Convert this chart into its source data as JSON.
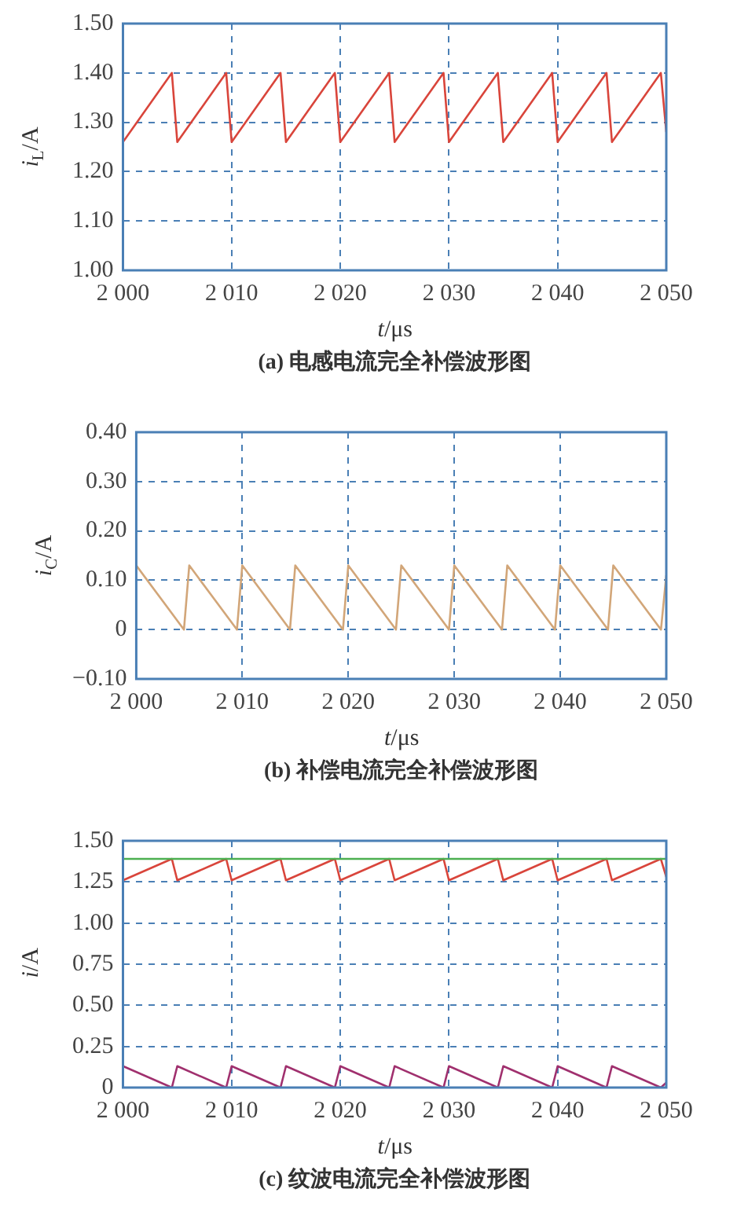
{
  "chart_data": [
    {
      "type": "line",
      "title": "(a) 电感电流完全补偿波形图",
      "xlabel": "t/μs",
      "ylabel": "i$_{L}$/A",
      "grid": true,
      "legend": false,
      "marker": "none",
      "line_style": "solid",
      "xlim": [
        2000,
        2050
      ],
      "xticks": [
        {
          "value": 2000,
          "label": "2 000"
        },
        {
          "value": 2010,
          "label": "2 010"
        },
        {
          "value": 2020,
          "label": "2 020"
        },
        {
          "value": 2030,
          "label": "2 030"
        },
        {
          "value": 2040,
          "label": "2 040"
        },
        {
          "value": 2050,
          "label": "2 050"
        }
      ],
      "ylim": [
        1.0,
        1.5
      ],
      "yticks": [
        {
          "value": 1.0,
          "label": "1.00"
        },
        {
          "value": 1.1,
          "label": "1.10"
        },
        {
          "value": 1.2,
          "label": "1.20"
        },
        {
          "value": 1.3,
          "label": "1.30"
        },
        {
          "value": 1.4,
          "label": "1.40"
        },
        {
          "value": 1.5,
          "label": "1.50"
        }
      ],
      "series": [
        {
          "color": "#d9453b",
          "x": [
            2000,
            2004.5,
            2005,
            2009.5,
            2010,
            2014.5,
            2015,
            2019.5,
            2020,
            2024.5,
            2025,
            2029.5,
            2030,
            2034.5,
            2035,
            2039.5,
            2040,
            2044.5,
            2045,
            2049.5,
            2050
          ],
          "values": [
            1.26,
            1.4,
            1.26,
            1.4,
            1.26,
            1.4,
            1.26,
            1.4,
            1.26,
            1.4,
            1.26,
            1.4,
            1.26,
            1.4,
            1.26,
            1.4,
            1.26,
            1.4,
            1.26,
            1.4,
            1.28
          ]
        }
      ]
    },
    {
      "type": "line",
      "title": "(b) 补偿电流完全补偿波形图",
      "xlabel": "t/μs",
      "ylabel": "i$_{C}$/A",
      "grid": true,
      "legend": false,
      "marker": "none",
      "line_style": "solid",
      "xlim": [
        2000,
        2050
      ],
      "xticks": [
        {
          "value": 2000,
          "label": "2 000"
        },
        {
          "value": 2010,
          "label": "2 010"
        },
        {
          "value": 2020,
          "label": "2 020"
        },
        {
          "value": 2030,
          "label": "2 030"
        },
        {
          "value": 2040,
          "label": "2 040"
        },
        {
          "value": 2050,
          "label": "2 050"
        }
      ],
      "ylim": [
        -0.1,
        0.4
      ],
      "yticks": [
        {
          "value": -0.1,
          "label": "−0.10"
        },
        0,
        {
          "value": 0.1,
          "label": "0.10"
        },
        {
          "value": 0.2,
          "label": "0.20"
        },
        {
          "value": 0.3,
          "label": "0.30"
        },
        {
          "value": 0.4,
          "label": "0.40"
        }
      ],
      "series": [
        {
          "color": "#d2a679",
          "x": [
            2000,
            2004.5,
            2005,
            2009.5,
            2010,
            2014.5,
            2015,
            2019.5,
            2020,
            2024.5,
            2025,
            2029.5,
            2030,
            2034.5,
            2035,
            2039.5,
            2040,
            2044.5,
            2045,
            2049.5,
            2050
          ],
          "values": [
            0.13,
            0,
            0.13,
            0,
            0.13,
            0,
            0.13,
            0,
            0.13,
            0,
            0.13,
            0,
            0.13,
            0,
            0.13,
            0,
            0.13,
            0,
            0.13,
            0,
            0.11
          ]
        }
      ]
    },
    {
      "type": "line",
      "title": "(c) 纹波电流完全补偿波形图",
      "xlabel": "t/μs",
      "ylabel": "i/A",
      "grid": true,
      "legend": false,
      "marker": "none",
      "line_style": "solid",
      "xlim": [
        2000,
        2050
      ],
      "xticks": [
        {
          "value": 2000,
          "label": "2 000"
        },
        {
          "value": 2010,
          "label": "2 010"
        },
        {
          "value": 2020,
          "label": "2 020"
        },
        {
          "value": 2030,
          "label": "2 030"
        },
        {
          "value": 2040,
          "label": "2 040"
        },
        {
          "value": 2050,
          "label": "2 050"
        }
      ],
      "ylim": [
        0,
        1.5
      ],
      "yticks": [
        0,
        {
          "value": 0.25,
          "label": "0.25"
        },
        {
          "value": 0.5,
          "label": "0.50"
        },
        {
          "value": 0.75,
          "label": "0.75"
        },
        {
          "value": 1.0,
          "label": "1.00"
        },
        {
          "value": 1.25,
          "label": "1.25"
        },
        {
          "value": 1.5,
          "label": "1.50"
        }
      ],
      "series": [
        {
          "color": "#4caf50",
          "x": [
            2000,
            2050
          ],
          "values": [
            1.39,
            1.39
          ]
        },
        {
          "color": "#d9453b",
          "x": [
            2000,
            2004.5,
            2005,
            2009.5,
            2010,
            2014.5,
            2015,
            2019.5,
            2020,
            2024.5,
            2025,
            2029.5,
            2030,
            2034.5,
            2035,
            2039.5,
            2040,
            2044.5,
            2045,
            2049.5,
            2050
          ],
          "values": [
            1.26,
            1.39,
            1.26,
            1.39,
            1.26,
            1.39,
            1.26,
            1.39,
            1.26,
            1.39,
            1.26,
            1.39,
            1.26,
            1.39,
            1.26,
            1.39,
            1.26,
            1.39,
            1.26,
            1.39,
            1.28
          ]
        },
        {
          "color": "#a0306e",
          "x": [
            2000,
            2004.5,
            2005,
            2009.5,
            2010,
            2014.5,
            2015,
            2019.5,
            2020,
            2024.5,
            2025,
            2029.5,
            2030,
            2034.5,
            2035,
            2039.5,
            2040,
            2044.5,
            2045,
            2049.5,
            2050
          ],
          "values": [
            0.13,
            0,
            0.13,
            0,
            0.13,
            0,
            0.13,
            0,
            0.13,
            0,
            0.13,
            0,
            0.13,
            0,
            0.13,
            0,
            0.13,
            0,
            0.13,
            0,
            0.03
          ]
        }
      ]
    }
  ]
}
